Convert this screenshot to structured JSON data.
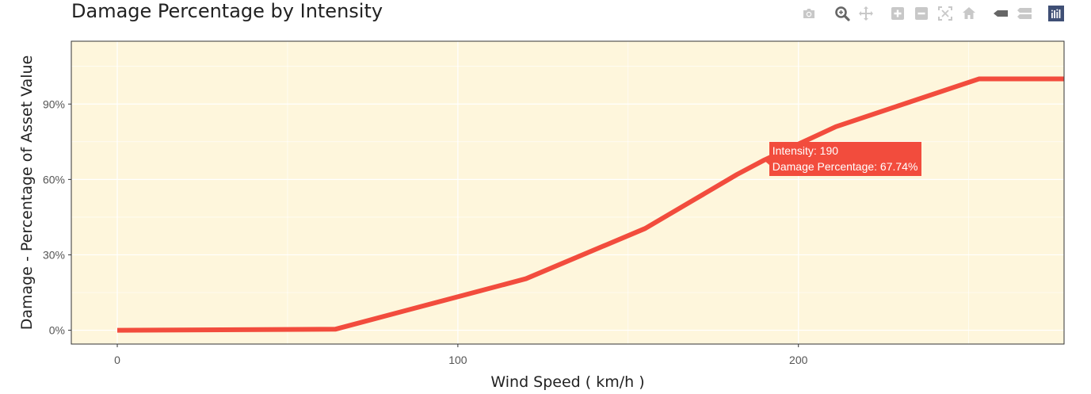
{
  "title": "Damage Percentage by Intensity",
  "modebar": [
    {
      "name": "camera-icon"
    },
    {
      "name": "zoom-icon"
    },
    {
      "name": "pan-icon"
    },
    {
      "name": "zoom-in-icon"
    },
    {
      "name": "zoom-out-icon"
    },
    {
      "name": "autoscale-icon"
    },
    {
      "name": "home-icon"
    },
    {
      "name": "hover-closest-icon"
    },
    {
      "name": "hover-compare-icon"
    },
    {
      "name": "plotly-logo-icon"
    }
  ],
  "tooltip": {
    "line1": "Intensity:  190",
    "line2": "Damage Percentage: 67.74%",
    "x": 190,
    "y": 67.74
  },
  "chart_data": {
    "type": "line",
    "title": "Damage Percentage by Intensity",
    "xlabel": "Wind Speed ( km/h )",
    "ylabel": "Damage - Percentage of Asset Value",
    "xlim": [
      -13.5,
      278
    ],
    "ylim": [
      -5.5,
      115
    ],
    "xticks": [
      0,
      100,
      200
    ],
    "xtick_labels": [
      "0",
      "100",
      "200"
    ],
    "yticks": [
      0,
      30,
      60,
      90
    ],
    "ytick_labels": [
      "0%",
      "30%",
      "60%",
      "90%"
    ],
    "grid": true,
    "line_color": "#f24c3d",
    "plot_bg": "#fef6dc",
    "series": [
      {
        "x": [
          0,
          64,
          120,
          155,
          182,
          190,
          211,
          253,
          278
        ],
        "y": [
          0,
          0.4,
          20.5,
          40.5,
          62,
          67.74,
          81,
          100,
          100
        ]
      }
    ]
  }
}
